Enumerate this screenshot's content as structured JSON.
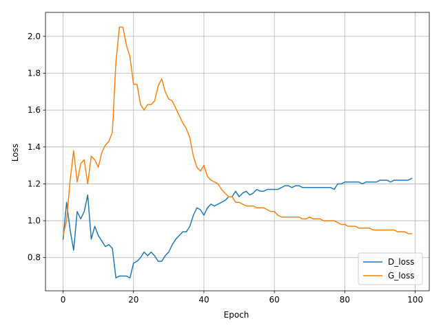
{
  "chart_data": {
    "type": "line",
    "xlabel": "Epoch",
    "ylabel": "Loss",
    "xlim": [
      -5,
      104
    ],
    "ylim": [
      0.62,
      2.13
    ],
    "xticks": [
      0,
      20,
      40,
      60,
      80,
      100
    ],
    "yticks": [
      0.8,
      1.0,
      1.2,
      1.4,
      1.6,
      1.8,
      2.0
    ],
    "xtick_labels": [
      "0",
      "20",
      "40",
      "60",
      "80",
      "100"
    ],
    "ytick_labels": [
      "0.8",
      "1.0",
      "1.2",
      "1.4",
      "1.6",
      "1.8",
      "2.0"
    ],
    "grid": true,
    "legend_position": "bottom-right",
    "x": [
      0,
      1,
      2,
      3,
      4,
      5,
      6,
      7,
      8,
      9,
      10,
      11,
      12,
      13,
      14,
      15,
      16,
      17,
      18,
      19,
      20,
      21,
      22,
      23,
      24,
      25,
      26,
      27,
      28,
      29,
      30,
      31,
      32,
      33,
      34,
      35,
      36,
      37,
      38,
      39,
      40,
      41,
      42,
      43,
      44,
      45,
      46,
      47,
      48,
      49,
      50,
      51,
      52,
      53,
      54,
      55,
      56,
      57,
      58,
      59,
      60,
      61,
      62,
      63,
      64,
      65,
      66,
      67,
      68,
      69,
      70,
      71,
      72,
      73,
      74,
      75,
      76,
      77,
      78,
      79,
      80,
      81,
      82,
      83,
      84,
      85,
      86,
      87,
      88,
      89,
      90,
      91,
      92,
      93,
      94,
      95,
      96,
      97,
      98,
      99
    ],
    "series": [
      {
        "name": "D_loss",
        "color": "#1f77b4",
        "values": [
          0.9,
          1.1,
          0.95,
          0.84,
          1.05,
          1.01,
          1.05,
          1.14,
          0.9,
          0.97,
          0.92,
          0.89,
          0.86,
          0.87,
          0.85,
          0.69,
          0.7,
          0.7,
          0.7,
          0.69,
          0.77,
          0.78,
          0.8,
          0.83,
          0.81,
          0.83,
          0.81,
          0.78,
          0.78,
          0.81,
          0.83,
          0.87,
          0.9,
          0.92,
          0.94,
          0.94,
          0.97,
          1.03,
          1.07,
          1.06,
          1.03,
          1.07,
          1.09,
          1.08,
          1.09,
          1.1,
          1.11,
          1.13,
          1.13,
          1.16,
          1.13,
          1.15,
          1.16,
          1.14,
          1.15,
          1.17,
          1.16,
          1.16,
          1.17,
          1.17,
          1.17,
          1.17,
          1.18,
          1.19,
          1.19,
          1.18,
          1.19,
          1.19,
          1.18,
          1.18,
          1.18,
          1.18,
          1.18,
          1.18,
          1.18,
          1.18,
          1.18,
          1.17,
          1.2,
          1.2,
          1.21,
          1.21,
          1.21,
          1.21,
          1.21,
          1.2,
          1.21,
          1.21,
          1.21,
          1.21,
          1.22,
          1.22,
          1.22,
          1.21,
          1.22,
          1.22,
          1.22,
          1.22,
          1.22,
          1.23
        ]
      },
      {
        "name": "G_loss",
        "color": "#ff7f0e",
        "values": [
          0.92,
          1.0,
          1.22,
          1.38,
          1.21,
          1.31,
          1.33,
          1.2,
          1.35,
          1.33,
          1.29,
          1.37,
          1.41,
          1.43,
          1.48,
          1.86,
          2.05,
          2.05,
          1.95,
          1.89,
          1.74,
          1.74,
          1.63,
          1.6,
          1.63,
          1.63,
          1.65,
          1.73,
          1.77,
          1.7,
          1.66,
          1.65,
          1.61,
          1.57,
          1.53,
          1.5,
          1.45,
          1.35,
          1.29,
          1.27,
          1.3,
          1.24,
          1.22,
          1.21,
          1.2,
          1.17,
          1.15,
          1.13,
          1.13,
          1.1,
          1.1,
          1.09,
          1.08,
          1.08,
          1.08,
          1.07,
          1.07,
          1.07,
          1.06,
          1.05,
          1.05,
          1.03,
          1.02,
          1.02,
          1.02,
          1.02,
          1.02,
          1.02,
          1.01,
          1.01,
          1.02,
          1.01,
          1.01,
          1.01,
          1.0,
          1.0,
          1.0,
          1.0,
          0.99,
          0.98,
          0.98,
          0.97,
          0.97,
          0.97,
          0.96,
          0.96,
          0.96,
          0.96,
          0.95,
          0.95,
          0.95,
          0.95,
          0.95,
          0.95,
          0.95,
          0.94,
          0.94,
          0.94,
          0.93,
          0.93
        ]
      }
    ]
  }
}
